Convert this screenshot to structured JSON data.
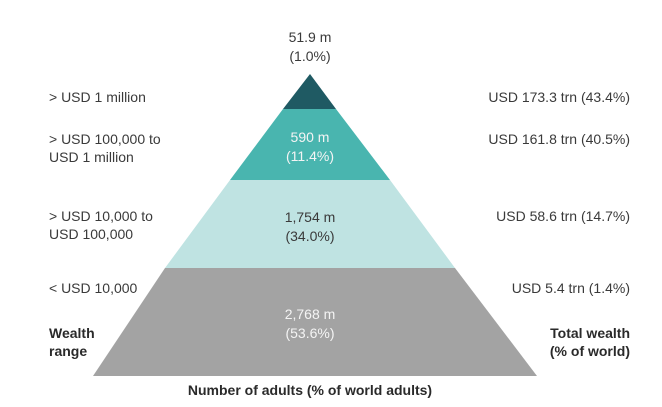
{
  "tiers": [
    {
      "wealth_range": "> USD 1 million",
      "adults": "51.9 m",
      "adults_pct": "(1.0%)",
      "total_wealth": "USD 173.3 trn (43.4%)",
      "color": "#1f5a63"
    },
    {
      "wealth_range_line1": "> USD 100,000 to",
      "wealth_range_line2": "USD 1 million",
      "adults": "590 m",
      "adults_pct": "(11.4%)",
      "total_wealth": "USD 161.8 trn (40.5%)",
      "color": "#49b5af"
    },
    {
      "wealth_range_line1": "> USD 10,000 to",
      "wealth_range_line2": "USD 100,000",
      "adults": "1,754 m",
      "adults_pct": "(34.0%)",
      "total_wealth": "USD 58.6 trn (14.7%)",
      "color": "#bfe3e2"
    },
    {
      "wealth_range": "< USD 10,000",
      "adults": "2,768 m",
      "adults_pct": "(53.6%)",
      "total_wealth": "USD 5.4 trn (1.4%)",
      "color": "#a3a3a3"
    }
  ],
  "legend": {
    "left_line1": "Wealth",
    "left_line2": "range",
    "right_line1": "Total wealth",
    "right_line2": "(% of world)",
    "bottom": "Number of adults (% of world adults)"
  }
}
